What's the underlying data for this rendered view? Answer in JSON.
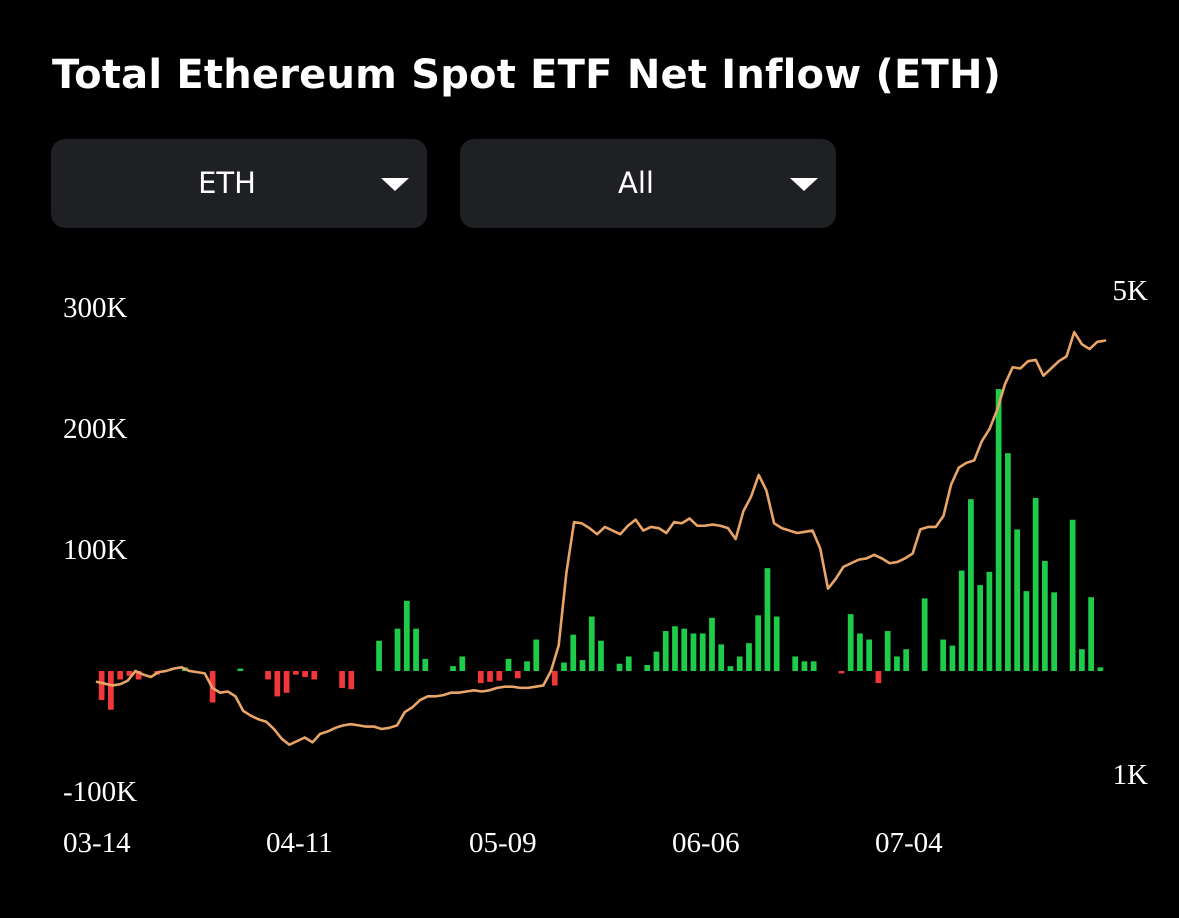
{
  "title": "Total Ethereum Spot ETF Net Inflow (ETH)",
  "filters": {
    "asset": {
      "value": "ETH",
      "icon": "caret-down-icon"
    },
    "range": {
      "value": "All",
      "icon": "caret-down-icon"
    }
  },
  "colors": {
    "background": "#000000",
    "inflow": "#1fcc4a",
    "outflow": "#f0373a",
    "line": "#e9a468",
    "select_bg": "#1e2024"
  },
  "chart_data": {
    "type": "bar",
    "left_axis": {
      "ticks": [
        {
          "value": 300000,
          "label": "300K"
        },
        {
          "value": 200000,
          "label": "200K"
        },
        {
          "value": 100000,
          "label": "100K"
        },
        {
          "value": -100000,
          "label": "-100K"
        }
      ],
      "range": [
        -100000,
        300000
      ]
    },
    "right_axis": {
      "ticks": [
        {
          "value": 5000,
          "label": "5K"
        },
        {
          "value": 1000,
          "label": "1K"
        }
      ],
      "range": [
        1000,
        5000
      ]
    },
    "x_ticks": [
      "03-14",
      "04-11",
      "05-09",
      "06-06",
      "07-04"
    ],
    "grid": false,
    "legend": "none",
    "series": [
      {
        "type": "bar",
        "axis": "left",
        "values": [
          -24000,
          -32000,
          -7000,
          -4000,
          -7000,
          0,
          -3000,
          0,
          0,
          3000,
          0,
          0,
          -26000,
          0,
          0,
          2000,
          0,
          0,
          -7000,
          -21000,
          -18000,
          -3000,
          -5000,
          -7000,
          0,
          0,
          -14000,
          -15000,
          0,
          0,
          25000,
          0,
          35000,
          58000,
          35000,
          10000,
          0,
          0,
          4000,
          12000,
          0,
          -10000,
          -9000,
          -8000,
          10000,
          -6000,
          8000,
          26000,
          0,
          -12000,
          7000,
          30000,
          9000,
          45000,
          25000,
          0,
          6000,
          12000,
          0,
          5000,
          16000,
          33000,
          37000,
          35000,
          31000,
          31000,
          44000,
          22000,
          4000,
          12000,
          23000,
          46000,
          85000,
          45000,
          0,
          12000,
          8000,
          8000,
          0,
          0,
          -2000,
          47000,
          31000,
          26000,
          -10000,
          33000,
          12000,
          18000,
          0,
          60000,
          0,
          26000,
          21000,
          83000,
          142000,
          71000,
          82000,
          233000,
          180000,
          117000,
          66000,
          143000,
          91000,
          65000,
          0,
          125000,
          18000,
          61000,
          3000
        ]
      },
      {
        "type": "line",
        "axis": "right",
        "values": [
          1770,
          1755,
          1740,
          1750,
          1780,
          1860,
          1830,
          1810,
          1850,
          1860,
          1880,
          1890,
          1860,
          1850,
          1840,
          1720,
          1680,
          1690,
          1650,
          1530,
          1490,
          1460,
          1440,
          1380,
          1300,
          1250,
          1280,
          1310,
          1270,
          1340,
          1360,
          1390,
          1410,
          1420,
          1410,
          1400,
          1400,
          1380,
          1390,
          1410,
          1520,
          1560,
          1620,
          1650,
          1650,
          1660,
          1680,
          1680,
          1690,
          1700,
          1690,
          1700,
          1720,
          1730,
          1730,
          1720,
          1720,
          1730,
          1740,
          1860,
          2070,
          2670,
          3090,
          3080,
          3040,
          2990,
          3050,
          3020,
          2990,
          3060,
          3110,
          3020,
          3050,
          3040,
          3000,
          3090,
          3080,
          3120,
          3060,
          3060,
          3070,
          3060,
          3040,
          2950,
          3180,
          3300,
          3480,
          3350,
          3080,
          3040,
          3020,
          3000,
          3010,
          3020,
          2870,
          2540,
          2620,
          2720,
          2750,
          2780,
          2790,
          2820,
          2790,
          2750,
          2760,
          2790,
          2830,
          3030,
          3050,
          3050,
          3140,
          3400,
          3540,
          3580,
          3600,
          3760,
          3860,
          4020,
          4230,
          4370,
          4360,
          4420,
          4430,
          4300,
          4360,
          4420,
          4460,
          4660,
          4560,
          4520,
          4580,
          4590
        ]
      }
    ]
  }
}
